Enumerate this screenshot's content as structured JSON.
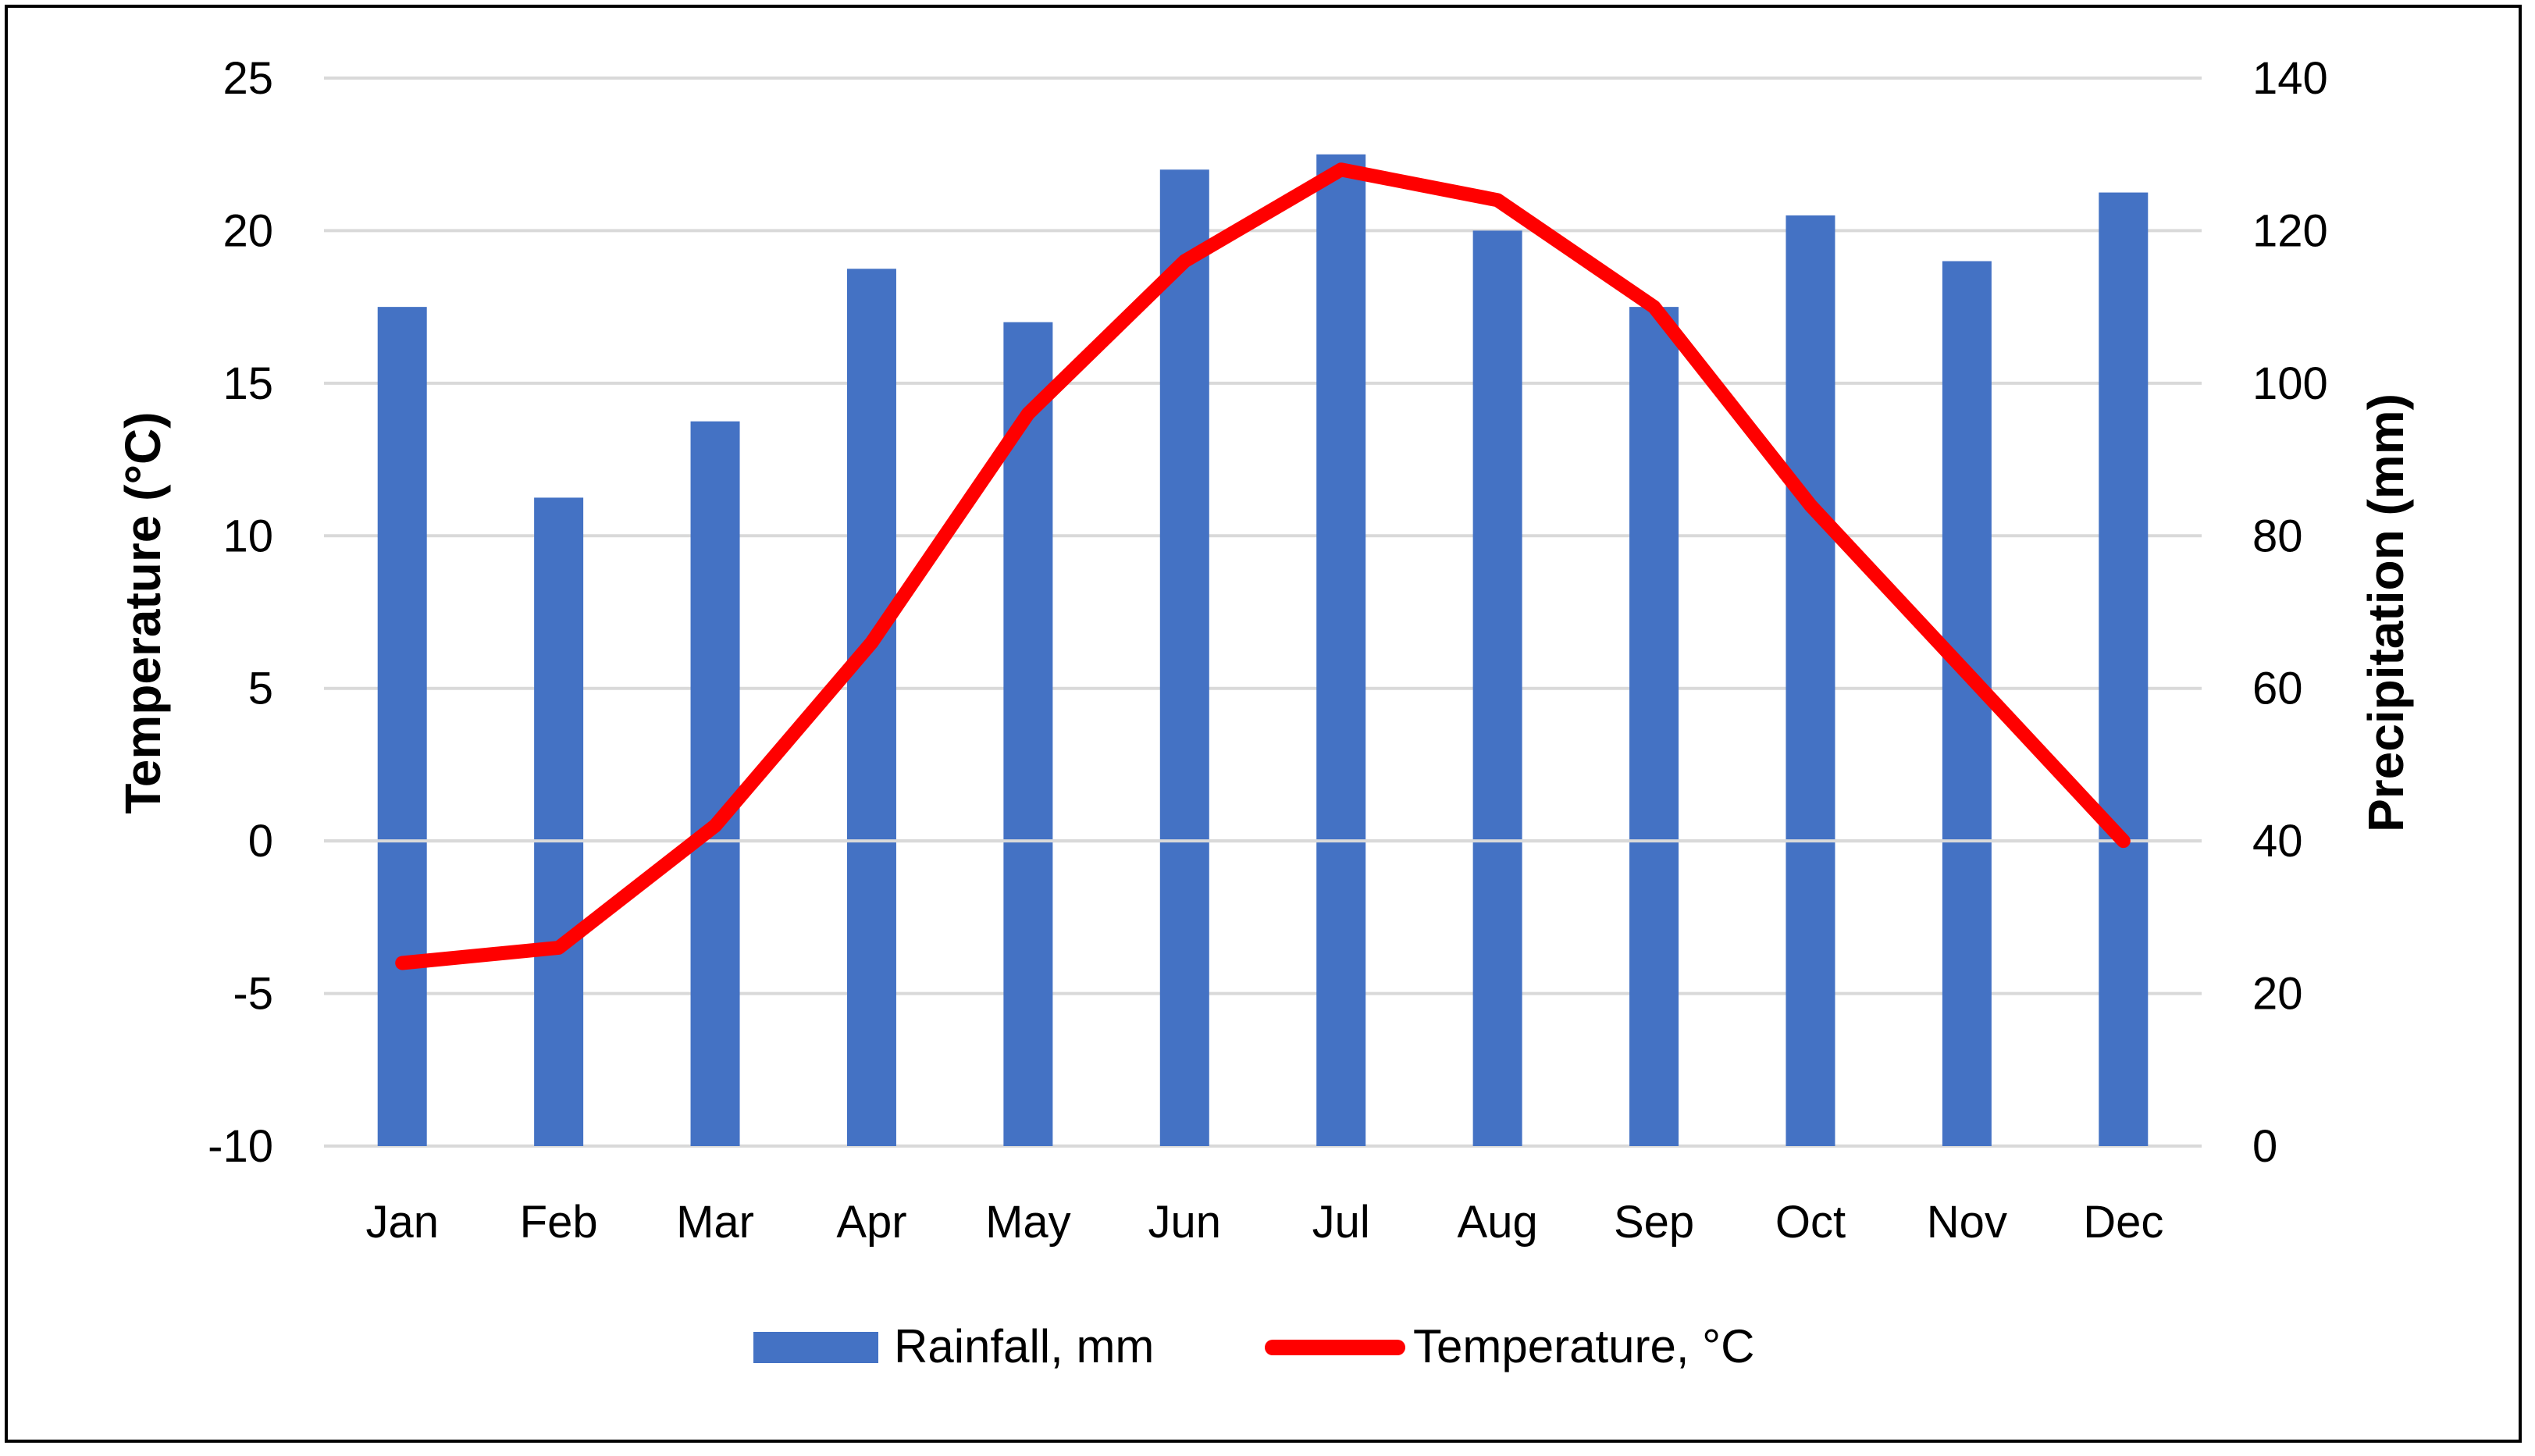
{
  "chart_data": {
    "type": "bar+line",
    "categories": [
      "Jan",
      "Feb",
      "Mar",
      "Apr",
      "May",
      "Jun",
      "Jul",
      "Aug",
      "Sep",
      "Oct",
      "Nov",
      "Dec"
    ],
    "series": [
      {
        "name": "Rainfall, mm",
        "type": "bar",
        "axis": "right",
        "color": "#4472c4",
        "values": [
          110,
          85,
          95,
          115,
          108,
          128,
          130,
          120,
          110,
          122,
          116,
          125
        ]
      },
      {
        "name": "Temperature, °C",
        "type": "line",
        "axis": "left",
        "color": "#ff0000",
        "values": [
          -4,
          -3.5,
          0.5,
          6.5,
          14,
          19,
          22,
          21,
          17.5,
          11,
          5.5,
          0
        ]
      }
    ],
    "ylabel_left": "Temperature (°C)",
    "ylabel_right": "Precipitation (mm)",
    "ylim_left": [
      -10,
      25
    ],
    "ylim_right": [
      0,
      140
    ],
    "yticks_left": [
      "25",
      "20",
      "15",
      "10",
      "5",
      "0",
      "-5",
      "-10"
    ],
    "yticks_right": [
      "140",
      "120",
      "100",
      "80",
      "60",
      "40",
      "20",
      "0"
    ],
    "grid": true,
    "legend_position": "bottom"
  }
}
